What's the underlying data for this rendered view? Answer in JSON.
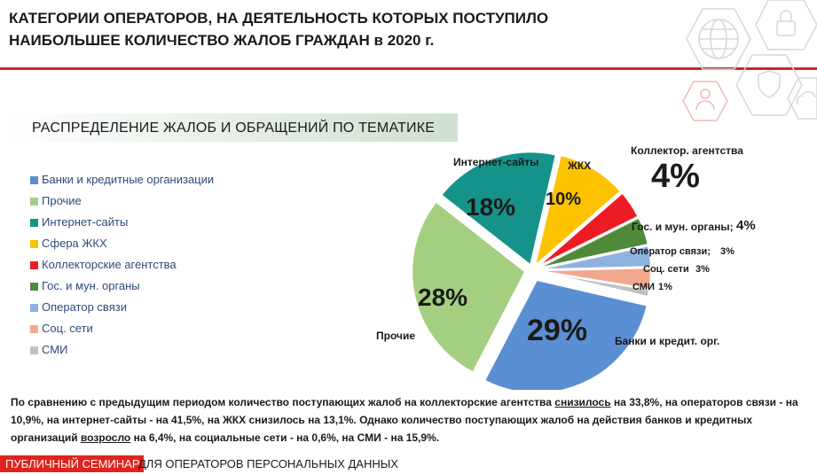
{
  "header": {
    "title_line1": "КАТЕГОРИИ ОПЕРАТОРОВ, НА ДЕЯТЕЛЬНОСТЬ КОТОРЫХ ПОСТУПИЛО",
    "title_line2": "НАИБОЛЬШЕЕ КОЛИЧЕСТВО ЖАЛОБ ГРАЖДАН в 2020 г."
  },
  "colors": {
    "accent": "#d1242c"
  },
  "decor_icons": [
    "globe-icon",
    "lock-icon",
    "user-icon",
    "shield-icon",
    "cloud-icon"
  ],
  "chart_data": {
    "type": "pie",
    "title": "РАСПРЕДЕЛЕНИЕ  ЖАЛОБ И ОБРАЩЕНИЙ ПО ТЕМАТИКЕ",
    "legend_position": "left",
    "slices": [
      {
        "name": "Банки и кредитные организации",
        "value": 29,
        "color": "#5b8fd4",
        "label": "Банки и кредит. орг.",
        "pct": "29%"
      },
      {
        "name": "Прочие",
        "value": 28,
        "color": "#a5cf80",
        "label": "Прочие",
        "pct": "28%"
      },
      {
        "name": "Интернет-сайты",
        "value": 18,
        "color": "#15938a",
        "label": "Интернет-сайты",
        "pct": "18%"
      },
      {
        "name": "Сфера ЖКХ",
        "value": 10,
        "color": "#fdc200",
        "label": "ЖКХ",
        "pct": "10%"
      },
      {
        "name": "Коллекторские агентства",
        "value": 4,
        "color": "#ec1c24",
        "label": "Коллектор. агентства",
        "pct": "4%"
      },
      {
        "name": "Гос. и мун. органы",
        "value": 4,
        "color": "#4f8a3a",
        "label": "Гос. и мун. органы;",
        "pct": "4%"
      },
      {
        "name": "Оператор связи",
        "value": 3,
        "color": "#8eb2df",
        "label": "Оператор связи;",
        "pct": "3%"
      },
      {
        "name": "Соц. сети",
        "value": 3,
        "color": "#f2a88f",
        "label": "Соц. сети",
        "pct": "3%"
      },
      {
        "name": "СМИ",
        "value": 1,
        "color": "#c0c0c0",
        "label": "СМИ",
        "pct": "1%"
      }
    ]
  },
  "note": {
    "p1": "По сравнению с предыдущим периодом количество поступающих жалоб на коллекторские агентства ",
    "u1": "снизилось",
    "p2": " на 33,8%, на операторов связи - на 10,9%,  на интернет-сайты - на 41,5%, на ЖКХ снизилось на 13,1%. Однако количество поступающих жалоб на действия банков и кредитных организаций ",
    "u2": "возросло",
    "p3": " на  6,4%, на социальные сети - на 0,6%, на СМИ - на 15,9%."
  },
  "footer": {
    "highlight": "ПУБЛИЧНЫЙ СЕМИНАР",
    "rest": "ДЛЯ ОПЕРАТОРОВ ПЕРСОНАЛЬНЫХ ДАННЫХ"
  }
}
